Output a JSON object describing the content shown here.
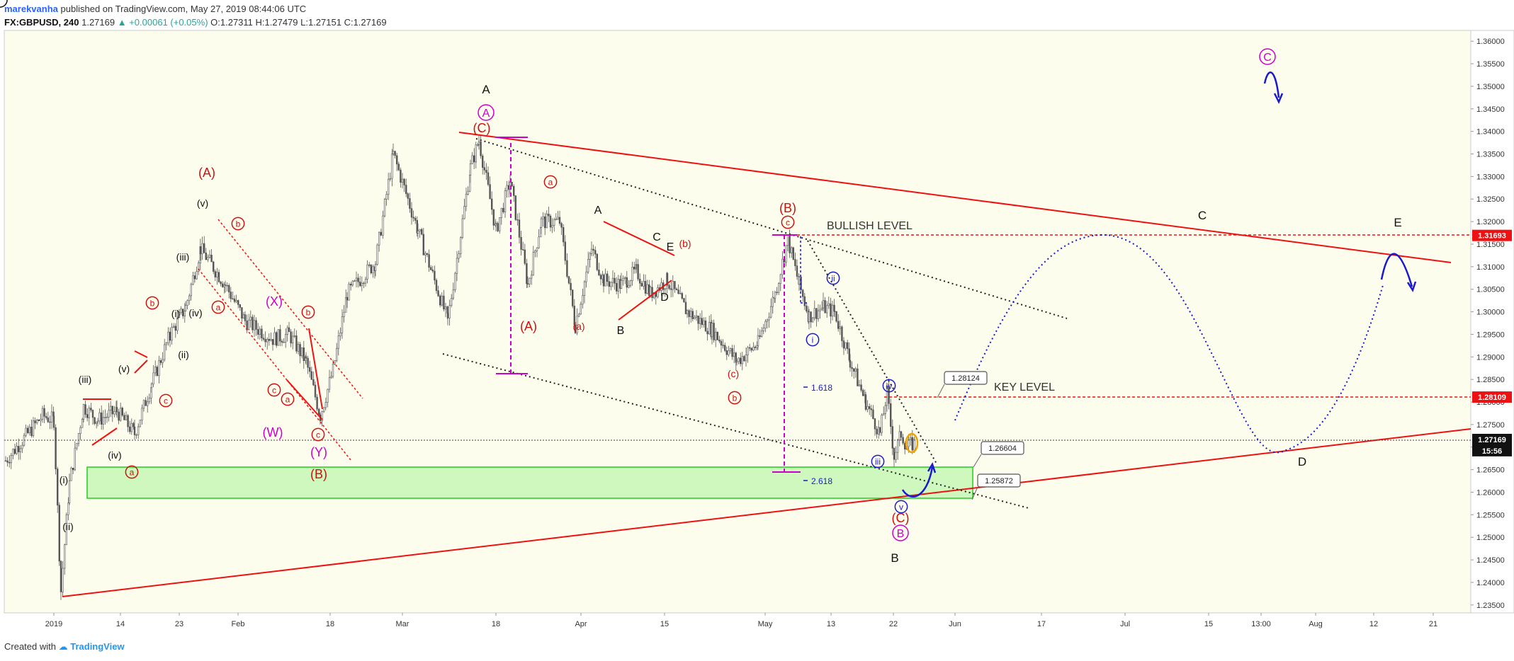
{
  "header": {
    "author": "marekvanha",
    "published": "published on TradingView.com, May 27, 2019 08:44:06 UTC",
    "symbol": "FX:GBPUSD, 240",
    "last": "1.27169",
    "change": "▲ +0.00061 (+0.05%)",
    "ohlc": "O:1.27311 H:1.27479 L:1.27151 C:1.27169"
  },
  "footer": {
    "created": "Created with",
    "brand": "TradingView"
  },
  "colors": {
    "background": "#fdfdee",
    "candles": "#555555",
    "trendline": "#ee1111",
    "zone": "#b9f5a8",
    "zone_border": "#22cc22",
    "wave_blue": "#1a1acc",
    "wave_magenta": "#cc00cc",
    "wave_red": "#cc1111"
  },
  "chart_data": {
    "type": "candlestick",
    "ylim": [
      1.232,
      1.362
    ],
    "price_ticks": [
      "1.36000",
      "1.35500",
      "1.35000",
      "1.34500",
      "1.34000",
      "1.33500",
      "1.33000",
      "1.32500",
      "1.32000",
      "1.31500",
      "1.31000",
      "1.30500",
      "1.30000",
      "1.29500",
      "1.29000",
      "1.28500",
      "1.28000",
      "1.27500",
      "1.27000",
      "1.26500",
      "1.26000",
      "1.25500",
      "1.25000",
      "1.24500",
      "1.24000",
      "1.23500"
    ],
    "date_ticks": [
      "2019",
      "14",
      "23",
      "Feb",
      "18",
      "Mar",
      "18",
      "Apr",
      "15",
      "May",
      "13",
      "22",
      "Jun",
      "17",
      "Jul",
      "15",
      "13:00",
      "Aug",
      "12",
      "21"
    ],
    "price_badges": [
      {
        "text": "1.31693",
        "price": 1.31693,
        "color": "#ee1111"
      },
      {
        "text": "1.28109",
        "price": 1.28109,
        "color": "#ee1111"
      },
      {
        "text": "1.27169",
        "price": 1.27169,
        "color": "#111111"
      },
      {
        "text": "15:56",
        "price": 1.2692,
        "color": "#111111"
      }
    ],
    "levels": [
      {
        "name": "BULLISH LEVEL",
        "price": 1.31693
      },
      {
        "name": "KEY LEVEL",
        "price": 1.28109
      },
      {
        "name": "last",
        "price": 1.27169
      }
    ],
    "callouts": [
      "1.28124",
      "1.26604",
      "1.25872"
    ],
    "fib_labels": [
      "1.618",
      "2.618"
    ],
    "wave_labels": [
      {
        "t": "(A)",
        "c": "#cc1111"
      },
      {
        "t": "(B)",
        "c": "#cc1111"
      },
      {
        "t": "(C)",
        "c": "#cc1111"
      },
      {
        "t": "(X)",
        "c": "#cc00cc"
      },
      {
        "t": "(W)",
        "c": "#cc00cc"
      },
      {
        "t": "(Y)",
        "c": "#cc00cc"
      },
      {
        "t": "(i)",
        "c": "#111111"
      },
      {
        "t": "(ii)",
        "c": "#111111"
      },
      {
        "t": "(iii)",
        "c": "#111111"
      },
      {
        "t": "(iv)",
        "c": "#111111"
      },
      {
        "t": "(v)",
        "c": "#111111"
      },
      {
        "t": "A",
        "c": "#111111"
      },
      {
        "t": "B",
        "c": "#111111"
      },
      {
        "t": "C",
        "c": "#111111"
      },
      {
        "t": "D",
        "c": "#111111"
      },
      {
        "t": "E",
        "c": "#111111"
      },
      {
        "t": "a",
        "c": "#cc1111"
      },
      {
        "t": "b",
        "c": "#cc1111"
      },
      {
        "t": "c",
        "c": "#cc1111"
      },
      {
        "t": "(a)",
        "c": "#cc1111"
      },
      {
        "t": "(b)",
        "c": "#cc1111"
      },
      {
        "t": "(c)",
        "c": "#cc1111"
      },
      {
        "t": "i",
        "c": "#1a1acc"
      },
      {
        "t": "ii",
        "c": "#1a1acc"
      },
      {
        "t": "iii",
        "c": "#1a1acc"
      },
      {
        "t": "iv",
        "c": "#1a1acc"
      },
      {
        "t": "v",
        "c": "#1a1acc"
      }
    ]
  }
}
